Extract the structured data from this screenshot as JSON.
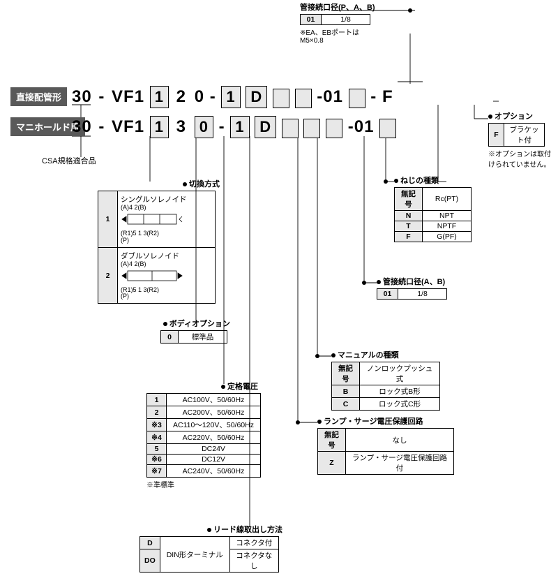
{
  "top_port": {
    "title": "管接続口径(P、A、B)",
    "code": "01",
    "value": "1/8",
    "note": "※EA、EBポートは\nM5×0.8"
  },
  "row1": {
    "badge": "直接配管形",
    "prefix": "30",
    "base": "VF1",
    "p1": "1",
    "p2": "2",
    "p3": "0",
    "p4": "1",
    "p5": "D",
    "port": "01",
    "suffix": "F"
  },
  "row2": {
    "badge": "マニホールド用",
    "prefix": "30",
    "base": "VF1",
    "p1": "1",
    "p2": "3",
    "p3": "0",
    "p4": "1",
    "p5": "D",
    "port": "01"
  },
  "csa": "CSA規格適合品",
  "option": {
    "title": "オプション",
    "code": "F",
    "value": "ブラケット付",
    "note": "※オプションは取付けられていません。"
  },
  "switching": {
    "title": "切換方式",
    "items": [
      {
        "code": "1",
        "label": "シングルソレノイド",
        "ports": "(A)4  2(B)",
        "bottom": "(R1)5 1 3(R2)\n(P)"
      },
      {
        "code": "2",
        "label": "ダブルソレノイド",
        "ports": "(A)4  2(B)",
        "bottom": "(R1)5 1 3(R2)\n(P)"
      }
    ]
  },
  "thread": {
    "title": "ねじの種類",
    "rows": [
      {
        "code": "無記号",
        "val": "Rc(PT)"
      },
      {
        "code": "N",
        "val": "NPT"
      },
      {
        "code": "T",
        "val": "NPTF"
      },
      {
        "code": "F",
        "val": "G(PF)"
      }
    ]
  },
  "port_ab": {
    "title": "管接続口径(A、B)",
    "code": "01",
    "value": "1/8"
  },
  "body_opt": {
    "title": "ボディオプション",
    "code": "0",
    "value": "標準品"
  },
  "manual": {
    "title": "マニュアルの種類",
    "rows": [
      {
        "code": "無記号",
        "val": "ノンロックプッシュ式"
      },
      {
        "code": "B",
        "val": "ロック式B形"
      },
      {
        "code": "C",
        "val": "ロック式C形"
      }
    ]
  },
  "voltage": {
    "title": "定格電圧",
    "rows": [
      {
        "code": "1",
        "val": "AC100V、50/60Hz"
      },
      {
        "code": "2",
        "val": "AC200V、50/60Hz"
      },
      {
        "code": "※3",
        "val": "AC110～120V、50/60Hz"
      },
      {
        "code": "※4",
        "val": "AC220V、50/60Hz"
      },
      {
        "code": "5",
        "val": "DC24V"
      },
      {
        "code": "※6",
        "val": "DC12V"
      },
      {
        "code": "※7",
        "val": "AC240V、50/60Hz"
      }
    ],
    "note": "※準標準"
  },
  "surge": {
    "title": "ランプ・サージ電圧保護回路",
    "rows": [
      {
        "code": "無記号",
        "val": "なし"
      },
      {
        "code": "Z",
        "val": "ランプ・サージ電圧保護回路付"
      }
    ]
  },
  "lead": {
    "title": "リード線取出し方法",
    "rows": [
      {
        "code": "D",
        "mid": "DIN形ターミナル",
        "val": "コネクタ付"
      },
      {
        "code": "DO",
        "mid": "",
        "val": "コネクタなし"
      }
    ]
  }
}
